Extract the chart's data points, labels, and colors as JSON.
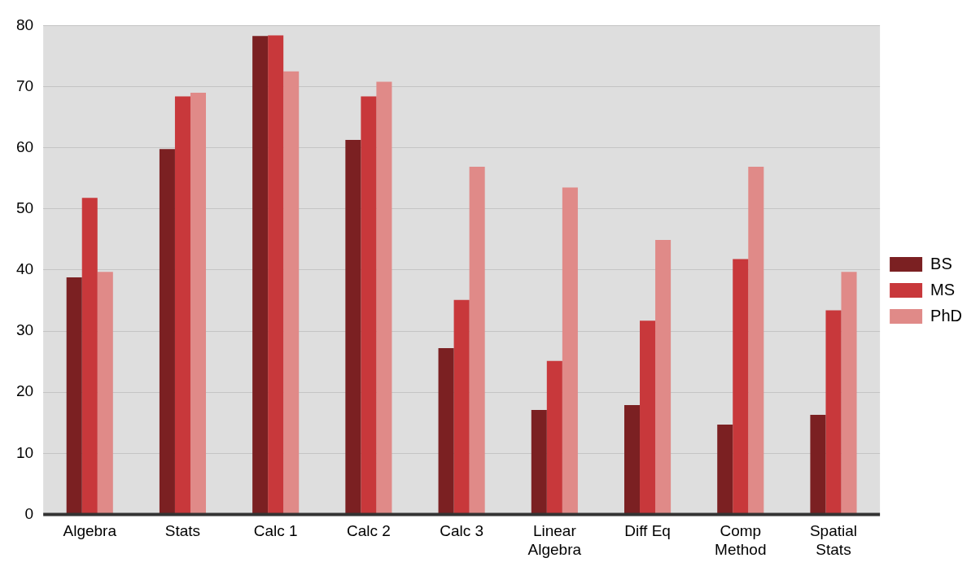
{
  "chart_data": {
    "type": "bar",
    "categories": [
      "Algebra",
      "Stats",
      "Calc 1",
      "Calc 2",
      "Calc 3",
      "Linear\nAlgebra",
      "Diff Eq",
      "Comp\nMethod",
      "Spatial\nStats"
    ],
    "series": [
      {
        "name": "BS",
        "color": "#7b2022",
        "values": [
          38.8,
          59.8,
          78.3,
          61.3,
          27.2,
          17.1,
          17.9,
          14.7,
          16.3
        ]
      },
      {
        "name": "MS",
        "color": "#c8383b",
        "values": [
          51.8,
          68.4,
          78.4,
          68.4,
          35.1,
          25.1,
          31.7,
          41.8,
          33.4
        ]
      },
      {
        "name": "PhD",
        "color": "#e08a88",
        "values": [
          39.7,
          69.0,
          72.5,
          70.8,
          56.9,
          53.5,
          44.9,
          56.9,
          39.7
        ]
      }
    ],
    "ylim": [
      0,
      80
    ],
    "yticks": [
      0,
      10,
      20,
      30,
      40,
      50,
      60,
      70,
      80
    ],
    "grid": "y",
    "legend": "right"
  }
}
